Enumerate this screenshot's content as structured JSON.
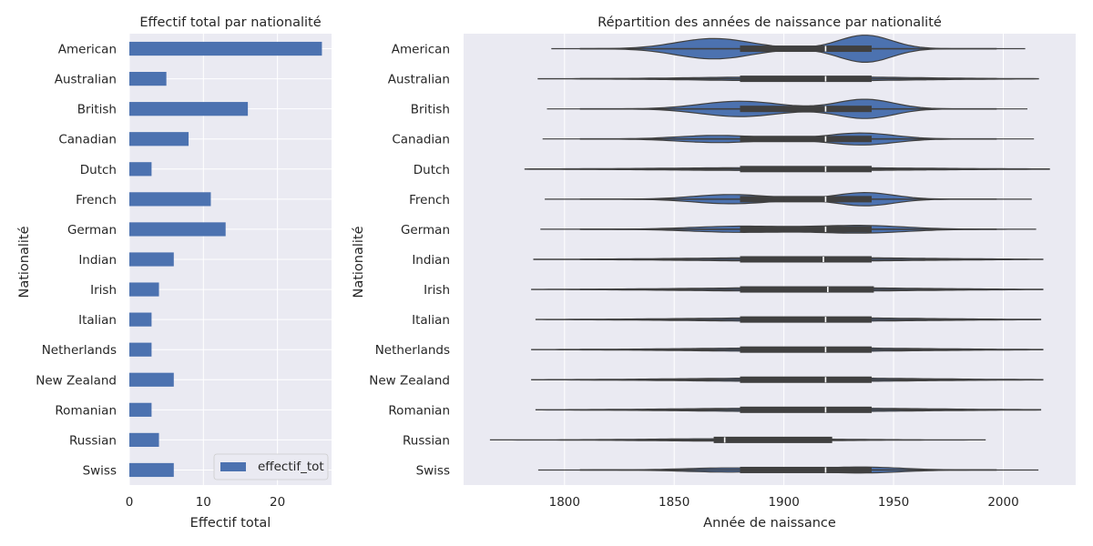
{
  "chart_data": [
    {
      "type": "bar",
      "orientation": "horizontal",
      "title": "Effectif total par nationalité",
      "xlabel": "Effectif total",
      "ylabel": "Nationalité",
      "categories": [
        "American",
        "Australian",
        "British",
        "Canadian",
        "Dutch",
        "French",
        "German",
        "Indian",
        "Irish",
        "Italian",
        "Netherlands",
        "New Zealand",
        "Romanian",
        "Russian",
        "Swiss"
      ],
      "series": [
        {
          "name": "effectif_tot",
          "values": [
            26,
            5,
            16,
            8,
            3,
            11,
            13,
            6,
            4,
            3,
            3,
            6,
            3,
            4,
            6
          ]
        }
      ],
      "xlim": [
        0,
        27.3
      ],
      "xticks": [
        0,
        10,
        20
      ],
      "legend": "bottom-right",
      "grid": true,
      "colors": {
        "bar": "#4c72b0",
        "background": "#eaeaf2",
        "grid": "#ffffff"
      }
    },
    {
      "type": "violin",
      "orientation": "horizontal",
      "title": "Répartition des années de naissance par nationalité",
      "xlabel": "Année de naissance",
      "ylabel": "Nationalité",
      "categories": [
        "American",
        "Australian",
        "British",
        "Canadian",
        "Dutch",
        "French",
        "German",
        "Indian",
        "Irish",
        "Italian",
        "Netherlands",
        "New Zealand",
        "Romanian",
        "Russian",
        "Swiss"
      ],
      "xlim": [
        1754,
        2033
      ],
      "xticks": [
        1800,
        1850,
        1900,
        1950,
        2000
      ],
      "grid": true,
      "colors": {
        "violin": "#4c72b0",
        "outline": "#404040",
        "box": "#404040",
        "median": "#ffffff",
        "background": "#eaeaf2",
        "grid": "#ffffff"
      },
      "distributions": [
        {
          "name": "American",
          "min": 1794,
          "max": 2010,
          "whisker_lo": 1807,
          "whisker_hi": 1997,
          "q1": 1880,
          "median": 1919,
          "q3": 1940,
          "max_halfwidth": 0.45,
          "peaks": [
            {
              "year": 1868,
              "weight": 0.75,
              "sigma": 17
            },
            {
              "year": 1937,
              "weight": 1.0,
              "sigma": 12
            }
          ]
        },
        {
          "name": "Australian",
          "min": 1788,
          "max": 2016,
          "whisker_lo": 1807,
          "whisker_hi": 1997,
          "q1": 1880,
          "median": 1919,
          "q3": 1940,
          "max_halfwidth": 0.07,
          "peaks": [
            {
              "year": 1910,
              "weight": 1.0,
              "sigma": 45
            }
          ]
        },
        {
          "name": "British",
          "min": 1792,
          "max": 2011,
          "whisker_lo": 1807,
          "whisker_hi": 1997,
          "q1": 1880,
          "median": 1919,
          "q3": 1940,
          "max_halfwidth": 0.32,
          "peaks": [
            {
              "year": 1880,
              "weight": 0.8,
              "sigma": 18
            },
            {
              "year": 1937,
              "weight": 1.0,
              "sigma": 13
            }
          ]
        },
        {
          "name": "Canadian",
          "min": 1790,
          "max": 2014,
          "whisker_lo": 1807,
          "whisker_hi": 1997,
          "q1": 1880,
          "median": 1919,
          "q3": 1940,
          "max_halfwidth": 0.2,
          "peaks": [
            {
              "year": 1870,
              "weight": 0.6,
              "sigma": 18
            },
            {
              "year": 1935,
              "weight": 1.0,
              "sigma": 15
            }
          ]
        },
        {
          "name": "Dutch",
          "min": 1782,
          "max": 2021,
          "whisker_lo": 1807,
          "whisker_hi": 1997,
          "q1": 1880,
          "median": 1919,
          "q3": 1940,
          "max_halfwidth": 0.05,
          "peaks": [
            {
              "year": 1905,
              "weight": 1.0,
              "sigma": 55
            }
          ]
        },
        {
          "name": "French",
          "min": 1791,
          "max": 2013,
          "whisker_lo": 1807,
          "whisker_hi": 1997,
          "q1": 1880,
          "median": 1919,
          "q3": 1940,
          "max_halfwidth": 0.22,
          "peaks": [
            {
              "year": 1876,
              "weight": 0.7,
              "sigma": 17
            },
            {
              "year": 1937,
              "weight": 1.0,
              "sigma": 13
            }
          ]
        },
        {
          "name": "German",
          "min": 1789,
          "max": 2015,
          "whisker_lo": 1807,
          "whisker_hi": 1997,
          "q1": 1880,
          "median": 1919,
          "q3": 1940,
          "max_halfwidth": 0.13,
          "peaks": [
            {
              "year": 1880,
              "weight": 0.8,
              "sigma": 22
            },
            {
              "year": 1935,
              "weight": 1.0,
              "sigma": 20
            }
          ]
        },
        {
          "name": "Indian",
          "min": 1786,
          "max": 2018,
          "whisker_lo": 1807,
          "whisker_hi": 1997,
          "q1": 1880,
          "median": 1918,
          "q3": 1940,
          "max_halfwidth": 0.06,
          "peaks": [
            {
              "year": 1910,
              "weight": 1.0,
              "sigma": 50
            }
          ]
        },
        {
          "name": "Irish",
          "min": 1785,
          "max": 2018,
          "whisker_lo": 1807,
          "whisker_hi": 1997,
          "q1": 1880,
          "median": 1920,
          "q3": 1941,
          "max_halfwidth": 0.06,
          "peaks": [
            {
              "year": 1910,
              "weight": 1.0,
              "sigma": 50
            }
          ]
        },
        {
          "name": "Italian",
          "min": 1787,
          "max": 2017,
          "whisker_lo": 1807,
          "whisker_hi": 1997,
          "q1": 1880,
          "median": 1919,
          "q3": 1940,
          "max_halfwidth": 0.06,
          "peaks": [
            {
              "year": 1910,
              "weight": 1.0,
              "sigma": 50
            }
          ]
        },
        {
          "name": "Netherlands",
          "min": 1785,
          "max": 2018,
          "whisker_lo": 1807,
          "whisker_hi": 1997,
          "q1": 1880,
          "median": 1919,
          "q3": 1940,
          "max_halfwidth": 0.06,
          "peaks": [
            {
              "year": 1910,
              "weight": 1.0,
              "sigma": 50
            }
          ]
        },
        {
          "name": "New Zealand",
          "min": 1785,
          "max": 2018,
          "whisker_lo": 1807,
          "whisker_hi": 1997,
          "q1": 1880,
          "median": 1919,
          "q3": 1940,
          "max_halfwidth": 0.06,
          "peaks": [
            {
              "year": 1910,
              "weight": 1.0,
              "sigma": 50
            }
          ]
        },
        {
          "name": "Romanian",
          "min": 1787,
          "max": 2017,
          "whisker_lo": 1807,
          "whisker_hi": 1997,
          "q1": 1880,
          "median": 1919,
          "q3": 1940,
          "max_halfwidth": 0.06,
          "peaks": [
            {
              "year": 1910,
              "weight": 1.0,
              "sigma": 50
            }
          ]
        },
        {
          "name": "Russian",
          "min": 1766,
          "max": 1992,
          "whisker_lo": 1827,
          "whisker_hi": 1931,
          "q1": 1868,
          "median": 1873,
          "q3": 1922,
          "max_halfwidth": 0.04,
          "peaks": [
            {
              "year": 1880,
              "weight": 1.0,
              "sigma": 40
            }
          ]
        },
        {
          "name": "Swiss",
          "min": 1788,
          "max": 2016,
          "whisker_lo": 1807,
          "whisker_hi": 1997,
          "q1": 1880,
          "median": 1919,
          "q3": 1940,
          "max_halfwidth": 0.1,
          "peaks": [
            {
              "year": 1875,
              "weight": 0.7,
              "sigma": 20
            },
            {
              "year": 1935,
              "weight": 1.0,
              "sigma": 18
            }
          ]
        }
      ]
    }
  ]
}
